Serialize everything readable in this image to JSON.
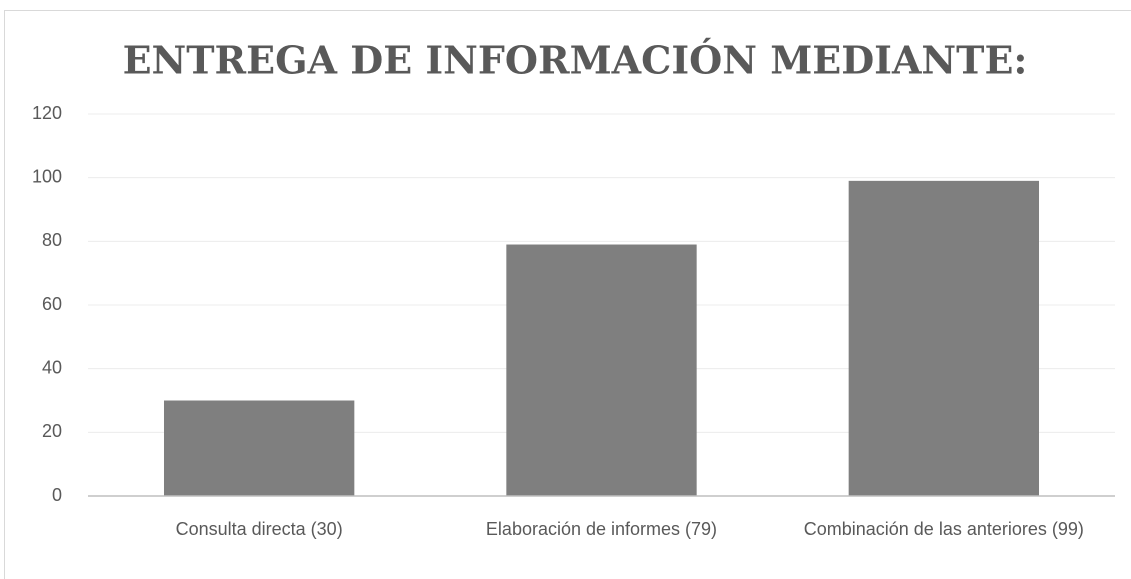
{
  "chart_data": {
    "type": "bar",
    "title": "ENTREGA DE INFORMACIÓN MEDIANTE:",
    "categories": [
      "Consulta directa (30)",
      "Elaboración de informes (79)",
      "Combinación de las anteriores (99)"
    ],
    "values": [
      30,
      79,
      99
    ],
    "color": "#7f7f7f",
    "ylim": [
      0,
      120
    ],
    "yticks": [
      0,
      20,
      40,
      60,
      80,
      100,
      120
    ],
    "grid": true
  }
}
